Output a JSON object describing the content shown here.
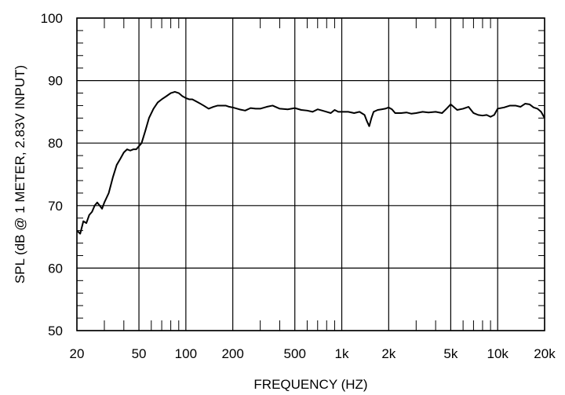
{
  "chart_data": {
    "type": "line",
    "title": "",
    "xlabel": "FREQUENCY  (HZ)",
    "ylabel": "SPL (dB @ 1 METER, 2.83V INPUT)",
    "x_scale": "log",
    "xlim": [
      20,
      20000
    ],
    "ylim": [
      50,
      100
    ],
    "grid": true,
    "x_ticks": [
      20,
      50,
      100,
      200,
      500,
      1000,
      2000,
      5000,
      10000,
      20000
    ],
    "x_tick_labels": [
      "20",
      "50",
      "100",
      "200",
      "500",
      "1k",
      "2k",
      "5k",
      "10k",
      "20k"
    ],
    "y_ticks": [
      50,
      60,
      70,
      80,
      90,
      100
    ],
    "y_tick_labels": [
      "50",
      "60",
      "70",
      "80",
      "90",
      "100"
    ],
    "series": [
      {
        "x": [
          20,
          21,
          22,
          23,
          24,
          25,
          26,
          27,
          28,
          29,
          30,
          32,
          34,
          36,
          38,
          40,
          42,
          44,
          46,
          48,
          50,
          52,
          55,
          58,
          62,
          66,
          70,
          75,
          80,
          85,
          90,
          95,
          100,
          105,
          110,
          120,
          130,
          140,
          150,
          160,
          170,
          180,
          190,
          200,
          220,
          240,
          260,
          280,
          300,
          330,
          360,
          400,
          450,
          500,
          550,
          600,
          650,
          700,
          750,
          800,
          850,
          900,
          950,
          1000,
          1100,
          1200,
          1300,
          1400,
          1450,
          1500,
          1550,
          1600,
          1700,
          1800,
          1900,
          2000,
          2100,
          2200,
          2400,
          2600,
          2800,
          3000,
          3300,
          3600,
          4000,
          4400,
          4700,
          5000,
          5500,
          6000,
          6500,
          7000,
          7500,
          8000,
          8500,
          9000,
          9500,
          10000,
          11000,
          12000,
          13000,
          14000,
          15000,
          16000,
          17000,
          18000,
          19000,
          20000
        ],
        "y": [
          66,
          65.5,
          67.5,
          67.2,
          68.5,
          69,
          70,
          70.5,
          70,
          69.5,
          70.5,
          72,
          74.5,
          76.5,
          77.5,
          78.5,
          79,
          78.8,
          79,
          79,
          79.5,
          80,
          82,
          84,
          85.5,
          86.5,
          87,
          87.5,
          88,
          88.2,
          88,
          87.5,
          87.2,
          87,
          87,
          86.5,
          86,
          85.5,
          85.8,
          86,
          86,
          86,
          85.8,
          85.7,
          85.4,
          85.2,
          85.6,
          85.5,
          85.5,
          85.8,
          86,
          85.5,
          85.4,
          85.6,
          85.3,
          85.2,
          85,
          85.4,
          85.2,
          85,
          84.8,
          85.3,
          85,
          85,
          85,
          84.8,
          85,
          84.5,
          83.5,
          82.7,
          84,
          85,
          85.3,
          85.4,
          85.5,
          85.7,
          85.4,
          84.8,
          84.8,
          84.9,
          84.7,
          84.8,
          85,
          84.9,
          85,
          84.8,
          85.5,
          86.2,
          85.3,
          85.5,
          85.8,
          84.8,
          84.5,
          84.4,
          84.5,
          84.2,
          84.5,
          85.5,
          85.7,
          86,
          86,
          85.8,
          86.3,
          86.2,
          85.7,
          85.5,
          85,
          84
        ]
      }
    ]
  }
}
